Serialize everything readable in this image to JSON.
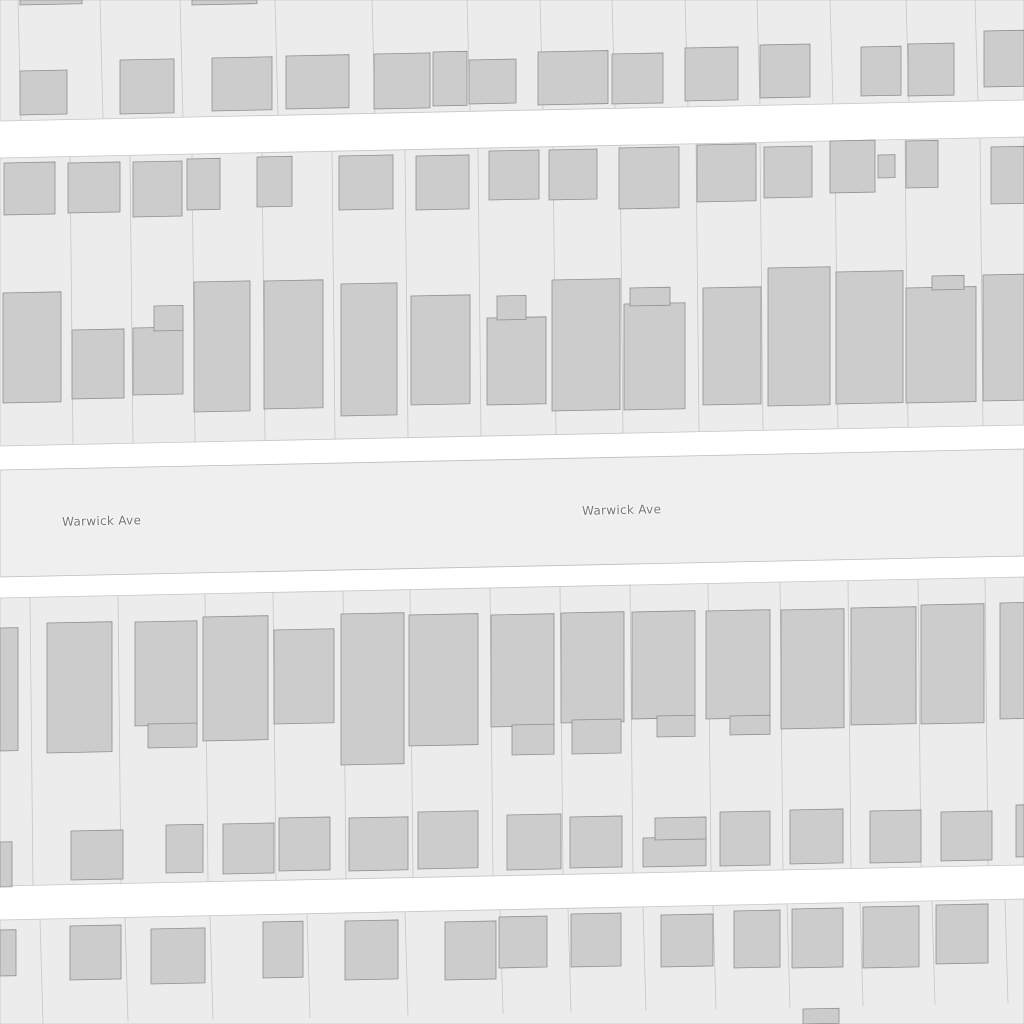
{
  "map": {
    "street_labels": [
      "Warwick Ave",
      "Warwick Ave"
    ],
    "colors": {
      "background": "#ffffff",
      "block": "#ececec",
      "parcel_line": "#c6c6c6",
      "road": "#efefef",
      "building_fill": "#cccccc",
      "building_stroke": "#8f8f8f",
      "label": "#757575"
    }
  }
}
